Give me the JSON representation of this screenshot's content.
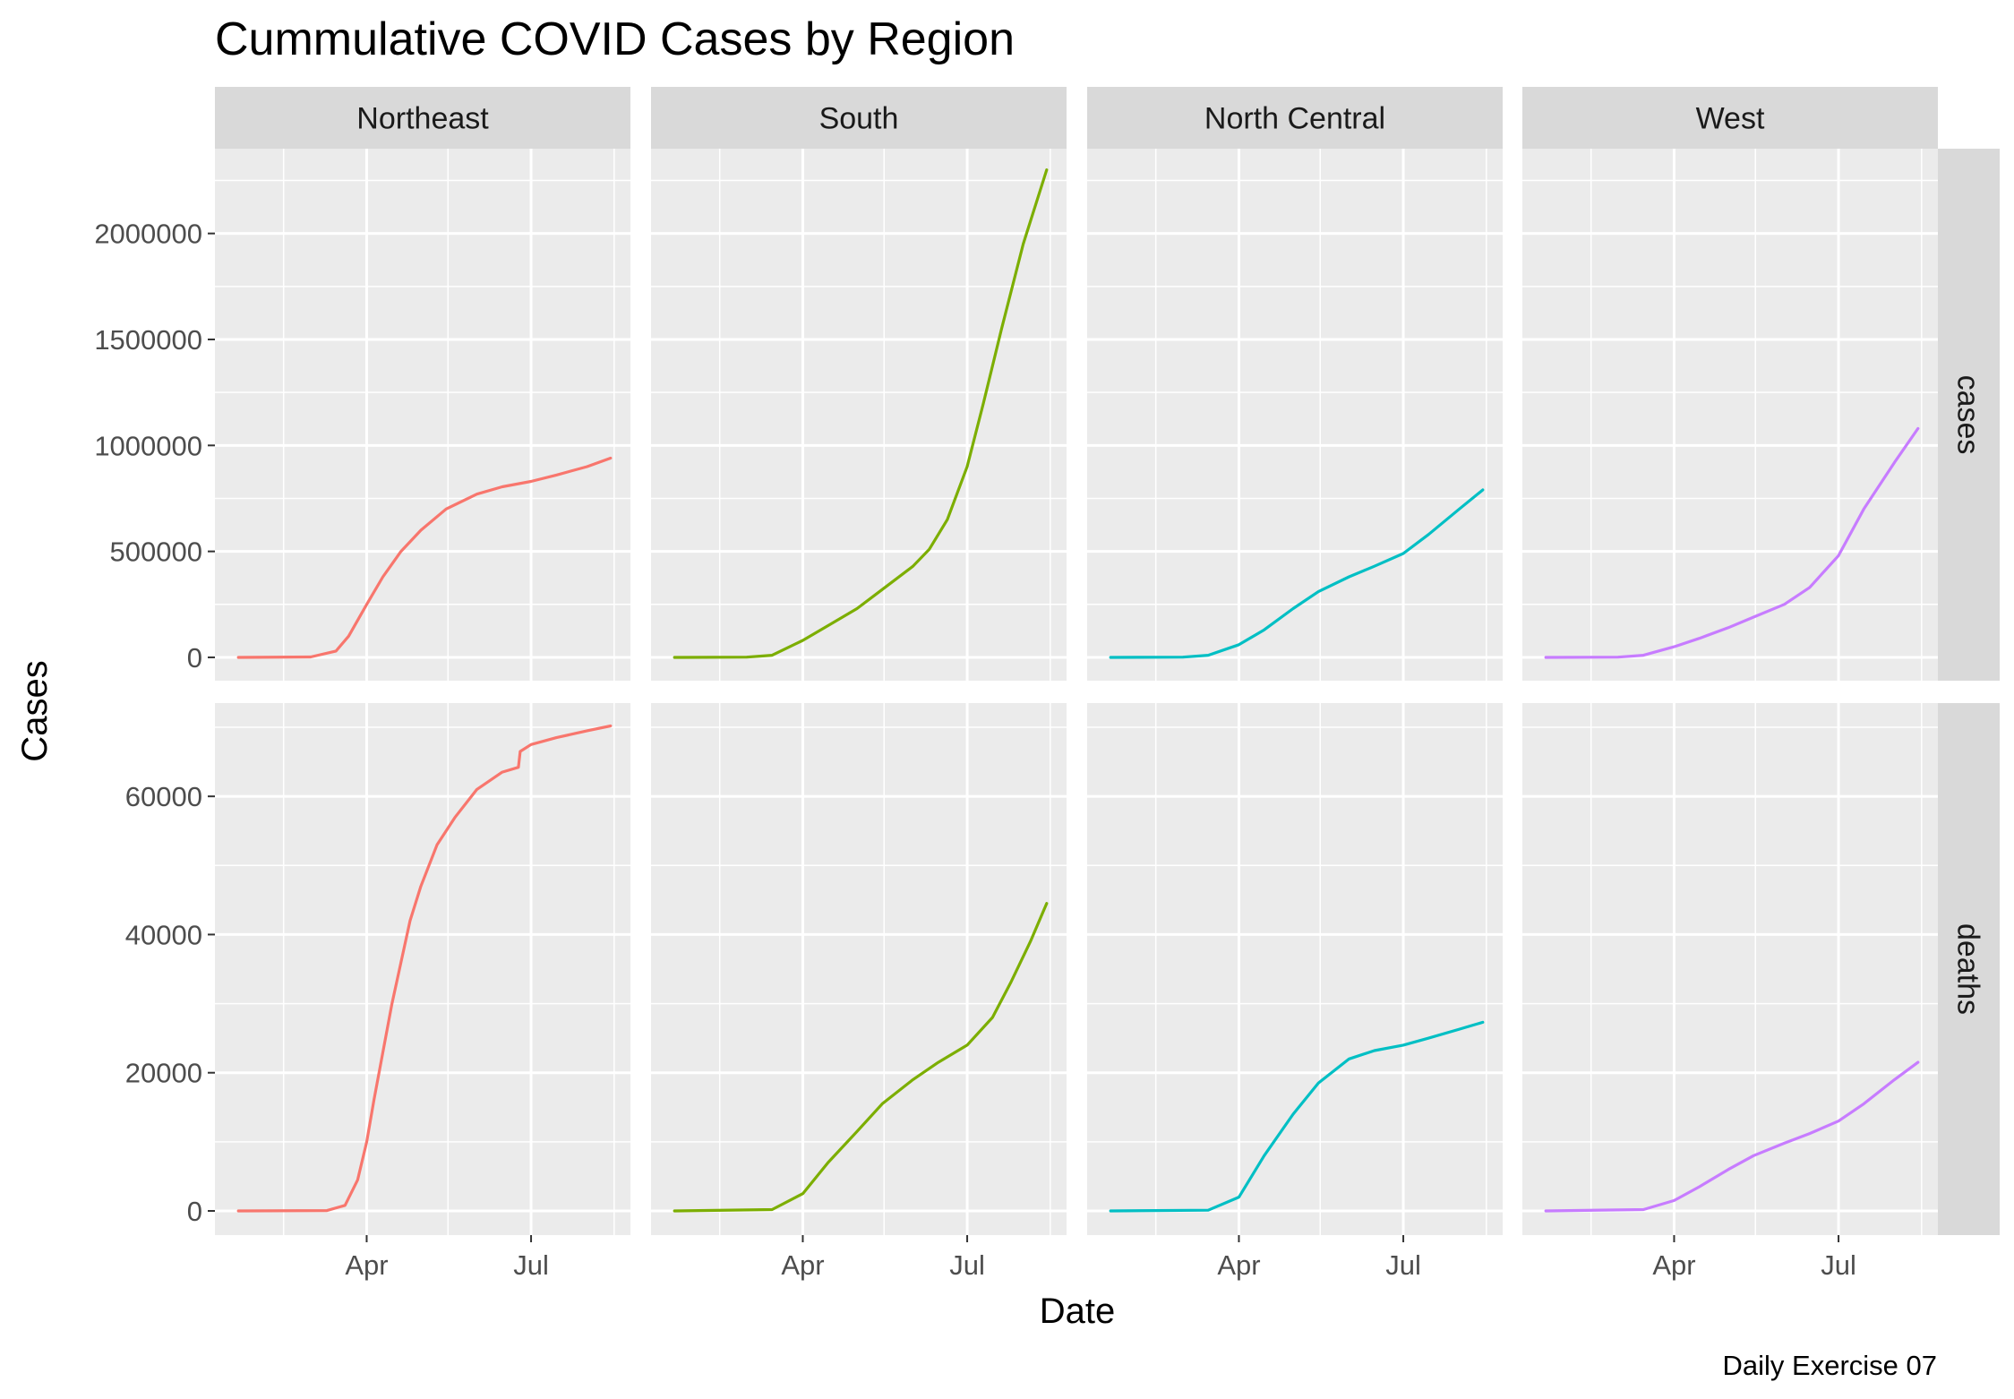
{
  "chart_data": {
    "type": "line",
    "title": "Cummulative COVID Cases by Region",
    "xlabel": "Date",
    "ylabel": "Cases",
    "caption": "Daily Exercise 07",
    "facet_columns": [
      "Northeast",
      "South",
      "North Central",
      "West"
    ],
    "facet_rows": [
      "cases",
      "deaths"
    ],
    "x_ticks": [
      {
        "label": "Apr",
        "date": "2020-04-01"
      },
      {
        "label": "Jul",
        "date": "2020-07-01"
      }
    ],
    "xlim": [
      "2020-01-08",
      "2020-08-25"
    ],
    "row_scales": {
      "cases": {
        "ylim": [
          -110000,
          2400000
        ],
        "ticks": [
          0,
          500000,
          1000000,
          1500000,
          2000000
        ],
        "tick_labels": [
          "0",
          "500000",
          "1000000",
          "1500000",
          "2000000"
        ]
      },
      "deaths": {
        "ylim": [
          -3500,
          73500
        ],
        "ticks": [
          0,
          20000,
          40000,
          60000
        ],
        "tick_labels": [
          "0",
          "20000",
          "40000",
          "60000"
        ]
      }
    },
    "grid": true,
    "legend": "none",
    "series": [
      {
        "region": "Northeast",
        "metric": "cases",
        "color": "#F8766D",
        "x": [
          "2020-01-21",
          "2020-03-01",
          "2020-03-15",
          "2020-03-22",
          "2020-04-01",
          "2020-04-10",
          "2020-04-20",
          "2020-05-01",
          "2020-05-15",
          "2020-06-01",
          "2020-06-15",
          "2020-07-01",
          "2020-07-15",
          "2020-08-01",
          "2020-08-14"
        ],
        "y": [
          0,
          2000,
          30000,
          100000,
          250000,
          380000,
          500000,
          600000,
          700000,
          770000,
          805000,
          830000,
          860000,
          900000,
          940000
        ]
      },
      {
        "region": "South",
        "metric": "cases",
        "color": "#7CAE00",
        "x": [
          "2020-01-21",
          "2020-03-01",
          "2020-03-15",
          "2020-04-01",
          "2020-04-15",
          "2020-05-01",
          "2020-05-15",
          "2020-06-01",
          "2020-06-10",
          "2020-06-20",
          "2020-07-01",
          "2020-07-10",
          "2020-07-20",
          "2020-08-01",
          "2020-08-14"
        ],
        "y": [
          0,
          1000,
          10000,
          80000,
          150000,
          230000,
          320000,
          430000,
          510000,
          650000,
          900000,
          1200000,
          1550000,
          1950000,
          2300000
        ]
      },
      {
        "region": "North Central",
        "metric": "cases",
        "color": "#00BFC4",
        "x": [
          "2020-01-21",
          "2020-03-01",
          "2020-03-15",
          "2020-04-01",
          "2020-04-15",
          "2020-05-01",
          "2020-05-15",
          "2020-06-01",
          "2020-06-15",
          "2020-07-01",
          "2020-07-15",
          "2020-08-01",
          "2020-08-14"
        ],
        "y": [
          0,
          1000,
          10000,
          60000,
          130000,
          230000,
          310000,
          380000,
          430000,
          490000,
          580000,
          700000,
          790000
        ]
      },
      {
        "region": "West",
        "metric": "cases",
        "color": "#C77CFF",
        "x": [
          "2020-01-21",
          "2020-03-01",
          "2020-03-15",
          "2020-04-01",
          "2020-04-15",
          "2020-05-01",
          "2020-05-15",
          "2020-06-01",
          "2020-06-15",
          "2020-07-01",
          "2020-07-15",
          "2020-08-01",
          "2020-08-14"
        ],
        "y": [
          0,
          1000,
          10000,
          50000,
          90000,
          140000,
          190000,
          250000,
          330000,
          480000,
          700000,
          920000,
          1080000
        ]
      },
      {
        "region": "Northeast",
        "metric": "deaths",
        "color": "#F8766D",
        "x": [
          "2020-01-21",
          "2020-03-10",
          "2020-03-20",
          "2020-03-27",
          "2020-04-01",
          "2020-04-05",
          "2020-04-10",
          "2020-04-15",
          "2020-04-20",
          "2020-04-25",
          "2020-05-01",
          "2020-05-10",
          "2020-05-20",
          "2020-06-01",
          "2020-06-15",
          "2020-06-24",
          "2020-06-25",
          "2020-07-01",
          "2020-07-15",
          "2020-08-01",
          "2020-08-14"
        ],
        "y": [
          0,
          50,
          800,
          4500,
          10000,
          16000,
          23000,
          30000,
          36000,
          42000,
          47000,
          53000,
          57000,
          61000,
          63500,
          64200,
          66500,
          67500,
          68500,
          69500,
          70200
        ]
      },
      {
        "region": "South",
        "metric": "deaths",
        "color": "#7CAE00",
        "x": [
          "2020-01-21",
          "2020-03-15",
          "2020-04-01",
          "2020-04-15",
          "2020-05-01",
          "2020-05-15",
          "2020-06-01",
          "2020-06-15",
          "2020-07-01",
          "2020-07-15",
          "2020-07-25",
          "2020-08-05",
          "2020-08-14"
        ],
        "y": [
          0,
          200,
          2500,
          7000,
          11500,
          15500,
          19000,
          21500,
          24000,
          28000,
          33000,
          39000,
          44500
        ]
      },
      {
        "region": "North Central",
        "metric": "deaths",
        "color": "#00BFC4",
        "x": [
          "2020-01-21",
          "2020-03-15",
          "2020-04-01",
          "2020-04-15",
          "2020-05-01",
          "2020-05-15",
          "2020-06-01",
          "2020-06-15",
          "2020-07-01",
          "2020-07-15",
          "2020-08-01",
          "2020-08-14"
        ],
        "y": [
          0,
          100,
          2000,
          8000,
          14000,
          18500,
          22000,
          23200,
          24000,
          25000,
          26300,
          27300
        ]
      },
      {
        "region": "West",
        "metric": "deaths",
        "color": "#C77CFF",
        "x": [
          "2020-01-21",
          "2020-03-15",
          "2020-04-01",
          "2020-04-15",
          "2020-05-01",
          "2020-05-15",
          "2020-06-01",
          "2020-06-15",
          "2020-07-01",
          "2020-07-15",
          "2020-08-01",
          "2020-08-14"
        ],
        "y": [
          0,
          200,
          1500,
          3500,
          6000,
          8000,
          9800,
          11200,
          13000,
          15500,
          19000,
          21500
        ]
      }
    ]
  }
}
